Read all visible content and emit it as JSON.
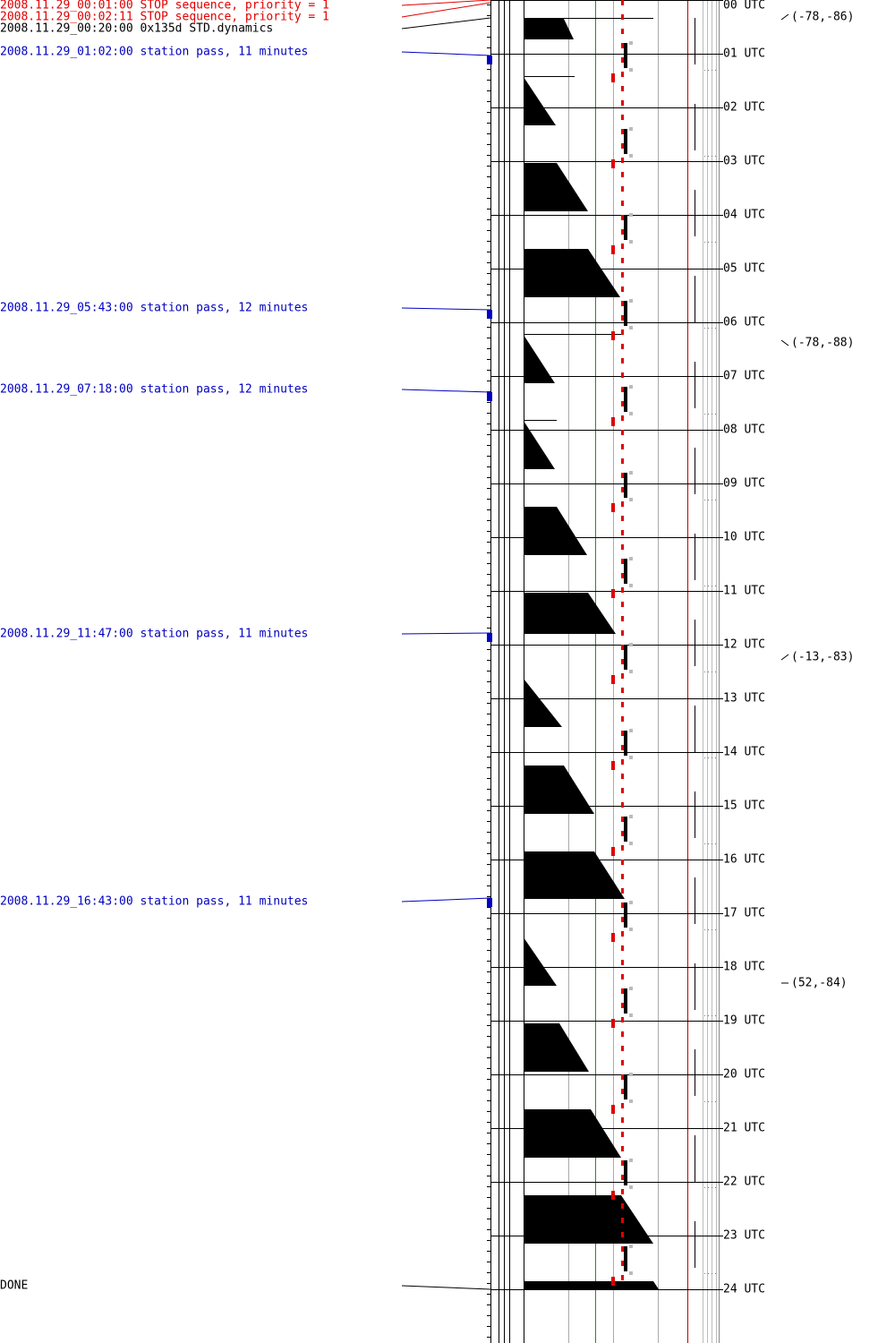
{
  "events": [
    {
      "label": "2008.11.29_00:01:00 STOP sequence, priority = 1",
      "color": "#e00000"
    },
    {
      "label": "2008.11.29_00:02:11 STOP sequence, priority = 1",
      "color": "#e00000"
    },
    {
      "label": "2008.11.29_00:20:00 0x135d STD.dynamics",
      "color": "#000000"
    },
    {
      "label": "2008.11.29_01:02:00 station pass, 11 minutes",
      "color": "#0000c0"
    },
    {
      "label": "2008.11.29_05:43:00 station pass, 12 minutes",
      "color": "#0000c0"
    },
    {
      "label": "2008.11.29_07:18:00 station pass, 12 minutes",
      "color": "#0000c0"
    },
    {
      "label": "2008.11.29_11:47:00 station pass, 11 minutes",
      "color": "#0000c0"
    },
    {
      "label": "2008.11.29_16:43:00 station pass, 11 minutes",
      "color": "#0000c0"
    }
  ],
  "done": "DONE",
  "hours": [
    "00 UTC",
    "01 UTC",
    "02 UTC",
    "03 UTC",
    "04 UTC",
    "05 UTC",
    "06 UTC",
    "07 UTC",
    "08 UTC",
    "09 UTC",
    "10 UTC",
    "11 UTC",
    "12 UTC",
    "13 UTC",
    "14 UTC",
    "15 UTC",
    "16 UTC",
    "17 UTC",
    "18 UTC",
    "19 UTC",
    "20 UTC",
    "21 UTC",
    "22 UTC",
    "23 UTC",
    "24 UTC"
  ],
  "coords": [
    "(-78,-86)",
    "(-78,-88)",
    "(-13,-83)",
    "(52,-84)"
  ]
}
